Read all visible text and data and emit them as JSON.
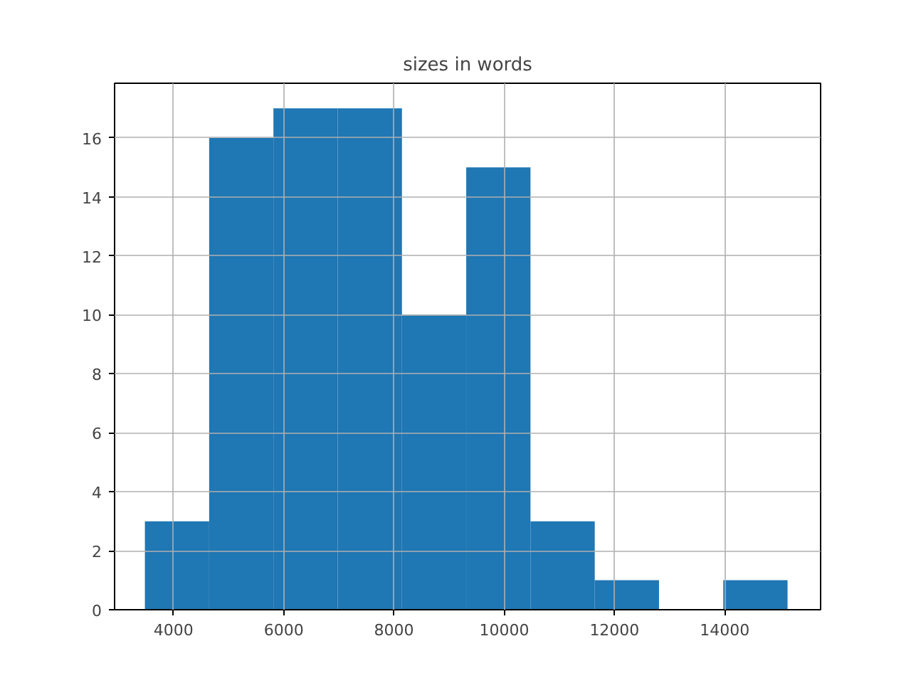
{
  "chart_data": {
    "type": "histogram",
    "title": "sizes in words",
    "bins": [
      3480,
      4646,
      5812,
      6978,
      8144,
      9310,
      10476,
      11642,
      12808,
      13974,
      15140
    ],
    "values": [
      3,
      16,
      17,
      17,
      10,
      15,
      3,
      1,
      0,
      1
    ],
    "color": "#1f77b4",
    "xlim": [
      2930,
      15740
    ],
    "ylim": [
      0,
      17.85
    ],
    "xticks": [
      4000,
      6000,
      8000,
      10000,
      12000,
      14000
    ],
    "yticks": [
      0,
      2,
      4,
      6,
      8,
      10,
      12,
      14,
      16
    ],
    "grid": true
  }
}
